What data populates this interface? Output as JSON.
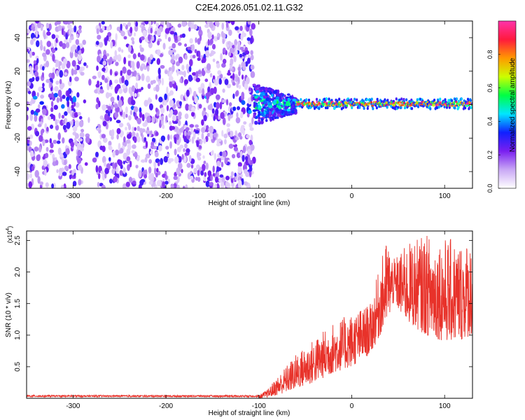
{
  "figure_title": "C2E4.2026.051.02.11.G32",
  "chart_data": [
    {
      "type": "heatmap",
      "title": "",
      "xlabel": "Height of straight line (km)",
      "ylabel": "Frequency (Hz)",
      "xlim": [
        -350,
        130
      ],
      "ylim": [
        -50,
        50
      ],
      "xticks": [
        -300,
        -200,
        -100,
        0,
        100
      ],
      "yticks": [
        -40,
        -20,
        0,
        20,
        40
      ],
      "colorbar": {
        "label": "Normalized spectral amplitude",
        "range": [
          0,
          1
        ],
        "ticks": [
          "0.0",
          "0.2",
          "0.4",
          "0.6",
          "0.8"
        ],
        "colors": [
          "#ffffff",
          "#c9a8f5",
          "#7a1ff0",
          "#1020ff",
          "#00e6ff",
          "#00ff44",
          "#ccff00",
          "#ff9900",
          "#ff1a3d",
          "#ff33aa"
        ]
      },
      "regions": [
        {
          "name": "broadband noise",
          "x_range": [
            -350,
            -105
          ],
          "y_range": [
            -50,
            50
          ],
          "amplitude_range": [
            0.05,
            0.3
          ]
        },
        {
          "name": "gap",
          "x_range": [
            -290,
            -275
          ],
          "y_range": [
            -50,
            50
          ],
          "amplitude_range": [
            0.0,
            0.05
          ]
        },
        {
          "name": "transition",
          "x_range": [
            -105,
            -60
          ],
          "y_range": [
            -12,
            12
          ],
          "amplitude_range": [
            0.2,
            0.6
          ]
        },
        {
          "name": "narrow carrier line",
          "x_range": [
            -60,
            130
          ],
          "y_range": [
            -3,
            3
          ],
          "center_frequency": 0.5,
          "amplitude_range": [
            0.5,
            1.0
          ]
        }
      ]
    },
    {
      "type": "line",
      "title": "",
      "xlabel": "Height of straight line (km)",
      "ylabel": "SNR (10 * v/v)",
      "y_multiplier": "(x10",
      "y_multiplier_exp": "4",
      "y_multiplier_close": ")",
      "xlim": [
        -350,
        130
      ],
      "ylim": [
        0,
        2.65
      ],
      "xticks": [
        -300,
        -200,
        -100,
        0,
        100
      ],
      "yticks": [
        "0.5",
        "1.0",
        "1.5",
        "2.0",
        "2.5"
      ],
      "color": "#e8322a",
      "envelope": {
        "x": [
          -350,
          -100,
          -90,
          -80,
          -60,
          -40,
          -20,
          0,
          20,
          38,
          45,
          60,
          80,
          100,
          115,
          130
        ],
        "y_low": [
          0.0,
          0.0,
          0.02,
          0.05,
          0.15,
          0.25,
          0.4,
          0.5,
          0.7,
          1.2,
          1.5,
          1.2,
          1.0,
          0.9,
          0.9,
          1.0
        ],
        "y_high": [
          0.05,
          0.05,
          0.15,
          0.35,
          0.7,
          0.95,
          1.2,
          1.35,
          1.5,
          2.55,
          2.2,
          2.45,
          2.6,
          2.55,
          2.5,
          2.5
        ]
      }
    }
  ]
}
